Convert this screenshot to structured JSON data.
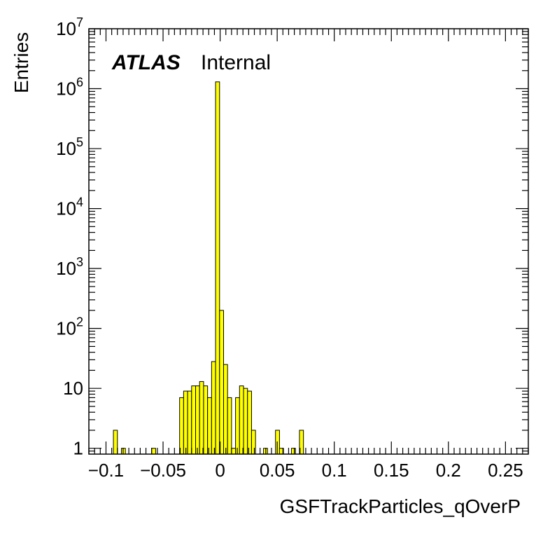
{
  "chart_data": {
    "type": "histogram",
    "title": "",
    "xlabel": "GSFTrackParticles_qOverP",
    "ylabel": "Entries",
    "label": {
      "atlas": "ATLAS",
      "status": "Internal"
    },
    "y_scale": "log",
    "xlim": [
      -0.115,
      0.27
    ],
    "ylim": [
      0.8,
      10000000
    ],
    "x_ticks": [
      -0.1,
      -0.05,
      0,
      0.05,
      0.1,
      0.15,
      0.2,
      0.25
    ],
    "x_tick_labels": [
      "−0.1",
      "−0.05",
      "0",
      "0.05",
      "0.1",
      "0.15",
      "0.2",
      "0.25"
    ],
    "y_ticks": [
      1,
      10,
      100,
      1000,
      10000,
      100000,
      1000000,
      10000000
    ],
    "y_tick_labels": [
      {
        "base": "1",
        "exp": ""
      },
      {
        "base": "10",
        "exp": ""
      },
      {
        "base": "10",
        "exp": "2"
      },
      {
        "base": "10",
        "exp": "3"
      },
      {
        "base": "10",
        "exp": "4"
      },
      {
        "base": "10",
        "exp": "5"
      },
      {
        "base": "10",
        "exp": "6"
      },
      {
        "base": "10",
        "exp": "7"
      }
    ],
    "fill_color": "#ffff00",
    "line_color": "#000000",
    "bin_width": 0.0035,
    "bins": [
      {
        "x": -0.0935,
        "y": 2
      },
      {
        "x": -0.0865,
        "y": 1
      },
      {
        "x": -0.06,
        "y": 1
      },
      {
        "x": -0.0355,
        "y": 7
      },
      {
        "x": -0.032,
        "y": 9
      },
      {
        "x": -0.0285,
        "y": 9
      },
      {
        "x": -0.025,
        "y": 11
      },
      {
        "x": -0.0215,
        "y": 11
      },
      {
        "x": -0.018,
        "y": 13
      },
      {
        "x": -0.0145,
        "y": 11
      },
      {
        "x": -0.011,
        "y": 7
      },
      {
        "x": -0.0075,
        "y": 28
      },
      {
        "x": -0.004,
        "y": 1300000
      },
      {
        "x": -0.0005,
        "y": 200
      },
      {
        "x": 0.003,
        "y": 25
      },
      {
        "x": 0.0065,
        "y": 7
      },
      {
        "x": 0.01,
        "y": 1
      },
      {
        "x": 0.0135,
        "y": 7
      },
      {
        "x": 0.017,
        "y": 11
      },
      {
        "x": 0.0205,
        "y": 10
      },
      {
        "x": 0.024,
        "y": 9
      },
      {
        "x": 0.0275,
        "y": 2
      },
      {
        "x": 0.038,
        "y": 1
      },
      {
        "x": 0.0485,
        "y": 2
      },
      {
        "x": 0.052,
        "y": 1
      },
      {
        "x": 0.0625,
        "y": 1
      },
      {
        "x": 0.0695,
        "y": 2
      }
    ]
  }
}
